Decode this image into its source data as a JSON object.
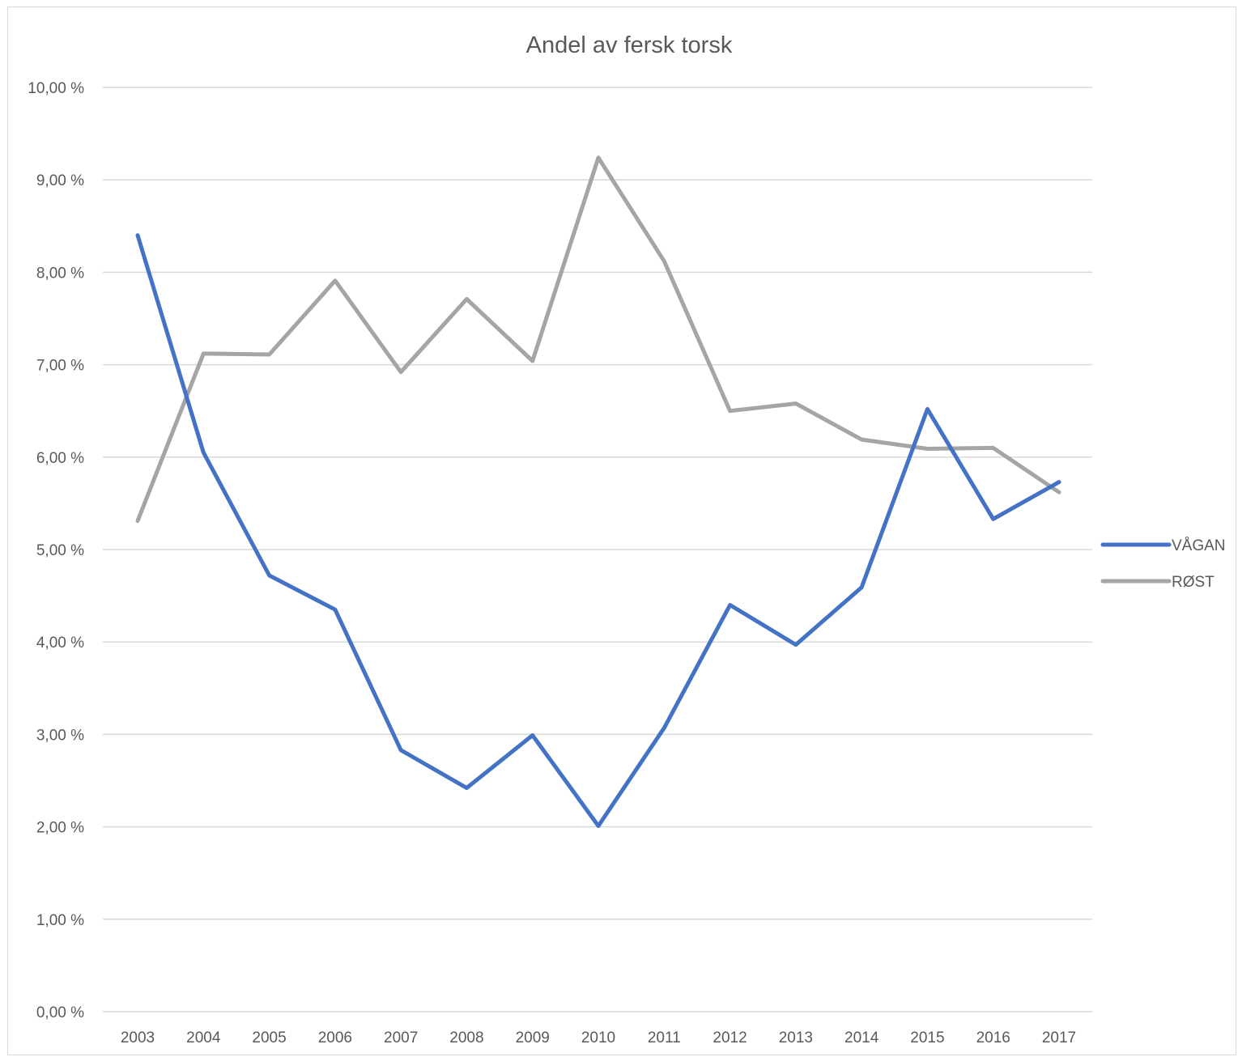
{
  "chart_data": {
    "type": "line",
    "title": "Andel av fersk torsk",
    "xlabel": "",
    "ylabel": "",
    "categories": [
      "2003",
      "2004",
      "2005",
      "2006",
      "2007",
      "2008",
      "2009",
      "2010",
      "2011",
      "2012",
      "2013",
      "2014",
      "2015",
      "2016",
      "2017"
    ],
    "ylim": [
      0,
      10
    ],
    "yticks": [
      0,
      1,
      2,
      3,
      4,
      5,
      6,
      7,
      8,
      9,
      10
    ],
    "ytick_labels": [
      "0,00 %",
      "1,00 %",
      "2,00 %",
      "3,00 %",
      "4,00 %",
      "5,00 %",
      "6,00 %",
      "7,00 %",
      "8,00 %",
      "9,00 %",
      "10,00 %"
    ],
    "grid": true,
    "legend_position": "right",
    "series": [
      {
        "name": "VÅGAN",
        "color": "#4472C4",
        "values": [
          8.4,
          6.05,
          4.72,
          4.35,
          2.83,
          2.42,
          2.99,
          2.01,
          3.07,
          4.4,
          3.97,
          4.59,
          6.52,
          5.33,
          5.73
        ]
      },
      {
        "name": "RØST",
        "color": "#A5A5A5",
        "values": [
          5.31,
          7.12,
          7.11,
          7.91,
          6.92,
          7.71,
          7.04,
          9.24,
          8.12,
          6.5,
          6.58,
          6.19,
          6.09,
          6.1,
          5.62
        ]
      }
    ]
  }
}
